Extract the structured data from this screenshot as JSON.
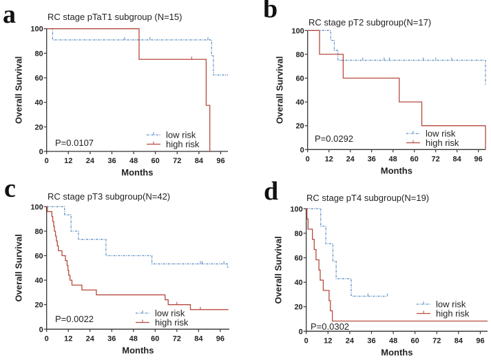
{
  "chart_data": [
    {
      "type": "line",
      "panel_label": "a",
      "title": "RC stage pTaT1 subgroup (N=15)",
      "xlabel": "Months",
      "ylabel": "Overall Survival",
      "xlim": [
        0,
        100
      ],
      "ylim": [
        0,
        100
      ],
      "xticks": [
        0,
        12,
        24,
        36,
        48,
        60,
        72,
        84,
        96
      ],
      "yticks": [
        0,
        20,
        40,
        60,
        80,
        100
      ],
      "p_value": "P=0.0107",
      "series": [
        {
          "name": "low risk",
          "color": "#5a8cc0",
          "dashed": true,
          "steps": [
            [
              0,
              100
            ],
            [
              3.3,
              90.9
            ],
            [
              91,
              77.9
            ],
            [
              92,
              62.3
            ]
          ],
          "end": 100,
          "censored": [
            43,
            57,
            89
          ]
        },
        {
          "name": "high risk",
          "color": "#b54a3c",
          "dashed": false,
          "steps": [
            [
              0,
              100
            ],
            [
              51,
              75
            ],
            [
              88,
              37.5
            ],
            [
              90,
              0
            ]
          ],
          "end": 90,
          "censored": [
            80
          ]
        }
      ]
    },
    {
      "type": "line",
      "panel_label": "b",
      "title": "RC stage pT2 subgroup(N=17)",
      "xlabel": "Months",
      "ylabel": "Overall Survival",
      "xlim": [
        0,
        100
      ],
      "ylim": [
        0,
        100
      ],
      "xticks": [
        0,
        12,
        24,
        36,
        48,
        60,
        72,
        84,
        96
      ],
      "yticks": [
        0,
        20,
        40,
        60,
        80,
        100
      ],
      "p_value": "P=0.0292",
      "series": [
        {
          "name": "low risk",
          "color": "#5a8cc0",
          "dashed": true,
          "steps": [
            [
              0,
              100
            ],
            [
              13,
              91.7
            ],
            [
              15,
              83.3
            ],
            [
              17,
              75
            ],
            [
              100,
              54.5
            ]
          ],
          "end": 100,
          "censored": [
            31,
            43,
            46,
            65,
            72,
            81
          ]
        },
        {
          "name": "high risk",
          "color": "#b54a3c",
          "dashed": false,
          "steps": [
            [
              0,
              100
            ],
            [
              6.7,
              80
            ],
            [
              20,
              60
            ],
            [
              51.5,
              40
            ],
            [
              64.2,
              20
            ],
            [
              100,
              0
            ]
          ],
          "end": 100,
          "censored": []
        }
      ]
    },
    {
      "type": "line",
      "panel_label": "c",
      "title": "RC stage pT3 subgroup(N=42)",
      "xlabel": "Months",
      "ylabel": "Overall Survival",
      "xlim": [
        0,
        101
      ],
      "ylim": [
        0,
        100
      ],
      "xticks": [
        0,
        12,
        24,
        36,
        48,
        60,
        72,
        84,
        96
      ],
      "yticks": [
        0,
        20,
        40,
        60,
        80,
        100
      ],
      "p_value": "P=0.0022",
      "series": [
        {
          "name": "low risk",
          "color": "#5a8cc0",
          "dashed": true,
          "steps": [
            [
              0,
              100
            ],
            [
              9.9,
              93.3
            ],
            [
              13.5,
              80
            ],
            [
              17.6,
              73.3
            ],
            [
              32.8,
              60
            ],
            [
              58.2,
              53.3
            ],
            [
              100,
              50.5
            ]
          ],
          "end": 100.5,
          "censored": [
            85,
            86,
            98
          ]
        },
        {
          "name": "high risk",
          "color": "#b54a3c",
          "dashed": false,
          "steps": [
            [
              0,
              100
            ],
            [
              0.4,
              96
            ],
            [
              2.9,
              92
            ],
            [
              3.4,
              88
            ],
            [
              3.9,
              84
            ],
            [
              4.3,
              80
            ],
            [
              4.9,
              76
            ],
            [
              5.4,
              72
            ],
            [
              5.9,
              68
            ],
            [
              6.5,
              64
            ],
            [
              8.5,
              60
            ],
            [
              10.4,
              56
            ],
            [
              11.3,
              52
            ],
            [
              11.8,
              48
            ],
            [
              12.2,
              44
            ],
            [
              12.9,
              40
            ],
            [
              14,
              36
            ],
            [
              19.5,
              32
            ],
            [
              27.5,
              28
            ],
            [
              65.5,
              24
            ],
            [
              67.2,
              20
            ],
            [
              79.5,
              16
            ]
          ],
          "end": 100.5,
          "censored": [
            72,
            85
          ]
        }
      ]
    },
    {
      "type": "line",
      "panel_label": "d",
      "title": "RC stage pT4 subgroup(N=19)",
      "xlabel": "Months",
      "ylabel": "Overall Survival",
      "xlim": [
        0,
        100
      ],
      "ylim": [
        0,
        100
      ],
      "xticks": [
        0,
        12,
        24,
        36,
        48,
        60,
        72,
        84,
        96
      ],
      "yticks": [
        0,
        20,
        40,
        60,
        80,
        100
      ],
      "p_value": "P=0.0302",
      "series": [
        {
          "name": "low risk",
          "color": "#5a8cc0",
          "dashed": true,
          "steps": [
            [
              0,
              100
            ],
            [
              8,
              85.7
            ],
            [
              10.8,
              71.4
            ],
            [
              14.7,
              57.1
            ],
            [
              16.5,
              42.9
            ],
            [
              24.8,
              28.6
            ]
          ],
          "end": 44.8,
          "censored": [
            34,
            44.8
          ]
        },
        {
          "name": "high risk",
          "color": "#b54a3c",
          "dashed": false,
          "steps": [
            [
              0,
              100
            ],
            [
              0.4,
              91.7
            ],
            [
              1,
              83.3
            ],
            [
              3.4,
              75
            ],
            [
              4.4,
              66.7
            ],
            [
              5.4,
              58.3
            ],
            [
              7,
              50
            ],
            [
              7.7,
              41.7
            ],
            [
              9.4,
              33.3
            ],
            [
              12.6,
              25
            ],
            [
              13.3,
              16.7
            ],
            [
              14.4,
              8.3
            ]
          ],
          "end": 100,
          "censored": []
        }
      ]
    }
  ]
}
